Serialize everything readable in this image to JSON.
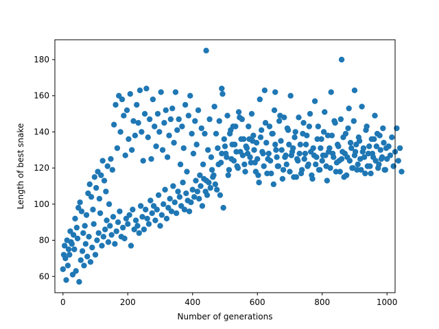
{
  "chart_data": {
    "type": "scatter",
    "title": "",
    "xlabel": "Number of generations",
    "ylabel": "Length of best snake",
    "xlim": [
      -25,
      1025
    ],
    "ylim": [
      51,
      191
    ],
    "xticks": [
      0,
      200,
      400,
      600,
      800,
      1000
    ],
    "yticks": [
      60,
      80,
      100,
      120,
      140,
      160,
      180
    ],
    "grid": false,
    "marker_color": "#1f77b4",
    "series": [
      {
        "generation_start": 0,
        "generation_step": 5,
        "values": [
          64,
          77,
          58,
          66,
          72,
          79,
          61,
          75,
          63,
          81,
          57,
          69,
          74,
          66,
          78,
          71,
          82,
          68,
          76,
          89,
          72,
          80,
          84,
          95,
          77,
          82,
          86,
          91,
          79,
          88,
          83,
          93,
          78,
          85,
          90,
          96,
          82,
          87,
          81,
          92,
          89,
          94,
          77,
          97,
          86,
          91,
          88,
          84,
          99,
          93,
          86,
          97,
          92,
          89,
          102,
          95,
          99,
          91,
          97,
          105,
          88,
          94,
          100,
          108,
          92,
          98,
          103,
          96,
          110,
          101,
          95,
          107,
          104,
          99,
          112,
          97,
          106,
          102,
          96,
          101,
          108,
          104,
          113,
          107,
          103,
          110,
          99,
          114,
          107,
          105,
          112,
          109,
          119,
          116,
          111,
          108,
          122,
          105,
          128,
          98,
          132,
          126,
          116,
          139,
          125,
          143,
          133,
          129,
          120,
          148,
          136,
          127,
          122,
          132,
          128,
          136,
          123,
          135,
          130,
          118,
          125,
          112,
          137,
          129,
          121,
          145,
          117,
          128,
          124,
          139,
          111,
          133,
          126,
          121,
          149,
          130,
          119,
          126,
          122,
          141,
          118,
          127,
          131,
          137,
          115,
          124,
          128,
          117,
          139,
          125,
          133,
          121,
          143,
          129,
          114,
          127,
          122,
          136,
          119,
          131,
          124,
          140,
          127,
          113,
          129,
          120,
          138,
          126,
          145,
          123,
          132,
          118,
          125,
          137,
          128,
          116,
          142,
          124,
          131,
          120,
          127,
          133,
          122,
          135,
          119,
          129,
          126,
          141,
          121,
          132,
          117,
          128,
          136,
          124,
          139,
          122,
          130,
          126,
          134,
          119,
          125,
          132,
          127,
          137,
          121,
          129,
          142,
          124,
          131,
          118
        ],
        "noise_values": [
          72,
          70,
          80,
          75,
          85,
          78,
          83,
          92,
          87,
          98,
          101,
          96,
          84,
          88,
          94,
          106,
          111,
          104,
          97,
          115,
          109,
          118,
          103,
          116,
          124,
          113,
          107,
          121,
          100,
          125,
          119,
          144,
          155,
          131,
          160,
          140,
          158,
          149,
          127,
          152,
          136,
          161,
          130,
          146,
          138,
          155,
          145,
          163,
          140,
          124,
          150,
          164,
          137,
          147,
          125,
          158,
          143,
          132,
          150,
          140,
          162,
          130,
          145,
          152,
          126,
          138,
          147,
          153,
          134,
          162,
          141,
          147,
          122,
          143,
          131,
          155,
          118,
          149,
          160,
          139,
          128,
          146,
          133,
          152,
          116,
          142,
          122,
          139,
          113,
          130,
          147,
          126,
          115,
          154,
          139,
          131,
          146,
          123,
          161,
          136,
          128,
          149,
          119,
          141,
          133,
          124,
          143,
          121,
          151,
          129,
          147,
          136,
          118,
          131,
          143,
          126,
          150,
          138,
          123,
          134,
          116,
          158,
          141,
          128,
          163,
          134,
          125,
          143,
          117,
          139,
          152,
          130,
          121,
          146,
          135,
          114,
          148,
          127,
          142,
          133,
          160,
          129,
          115,
          140,
          125,
          148,
          133,
          119,
          145,
          128,
          138,
          122,
          150,
          116,
          131,
          157,
          126,
          143,
          119,
          136,
          127,
          151,
          121,
          138,
          131,
          162,
          128,
          146,
          118,
          133,
          124,
          147,
          129,
          115,
          139,
          126,
          153,
          134,
          120,
          146,
          129,
          119,
          137,
          125,
          154,
          131,
          117,
          143,
          128,
          121,
          136,
          126,
          149,
          132,
          120,
          138,
          125,
          142,
          119,
          131
        ],
        "outliers": [
          [
            442,
            185
          ],
          [
            860,
            180
          ],
          [
            490,
            164
          ],
          [
            655,
            162
          ],
          [
            900,
            163
          ]
        ]
      }
    ]
  }
}
